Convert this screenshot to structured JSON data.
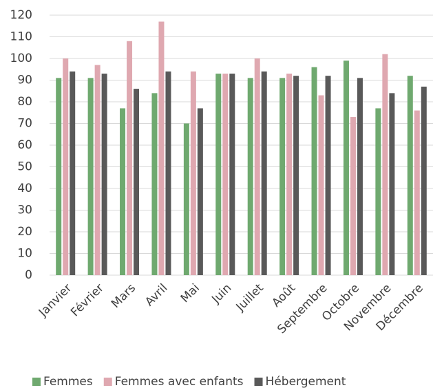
{
  "chart_data": {
    "type": "bar",
    "categories": [
      "Janvier",
      "Février",
      "Mars",
      "Avril",
      "Mai",
      "Juin",
      "Juillet",
      "Août",
      "Septembre",
      "Octobre",
      "Novembre",
      "Décembre"
    ],
    "series": [
      {
        "name": "Femmes",
        "color": "#6fa96f",
        "values": [
          91,
          91,
          77,
          84,
          70,
          93,
          91,
          91,
          96,
          99,
          77,
          92
        ]
      },
      {
        "name": "Femmes avec enfants",
        "color": "#dfa8b0",
        "values": [
          100,
          97,
          108,
          117,
          94,
          93,
          100,
          93,
          83,
          73,
          102,
          76
        ]
      },
      {
        "name": "Hébergement",
        "color": "#595959",
        "values": [
          94,
          93,
          86,
          94,
          77,
          93,
          94,
          92,
          92,
          91,
          84,
          87
        ]
      }
    ],
    "ylim": [
      0,
      120
    ],
    "yticks": [
      0,
      10,
      20,
      30,
      40,
      50,
      60,
      70,
      80,
      90,
      100,
      110,
      120
    ],
    "grid": true,
    "legend": "bottom"
  }
}
